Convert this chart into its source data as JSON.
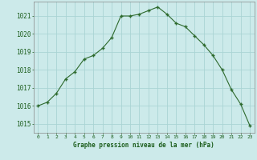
{
  "x": [
    0,
    1,
    2,
    3,
    4,
    5,
    6,
    7,
    8,
    9,
    10,
    11,
    12,
    13,
    14,
    15,
    16,
    17,
    18,
    19,
    20,
    21,
    22,
    23
  ],
  "y": [
    1016.0,
    1016.2,
    1016.7,
    1017.5,
    1017.9,
    1018.6,
    1018.8,
    1019.2,
    1019.8,
    1021.0,
    1021.0,
    1021.1,
    1021.3,
    1021.5,
    1021.1,
    1020.6,
    1020.4,
    1019.9,
    1019.4,
    1018.8,
    1018.0,
    1016.9,
    1016.1,
    1014.9
  ],
  "line_color": "#2d6a2d",
  "marker": "+",
  "marker_color": "#2d6a2d",
  "bg_color": "#cceaea",
  "grid_color": "#aad4d4",
  "xlabel": "Graphe pression niveau de la mer (hPa)",
  "xlabel_color": "#1a5c1a",
  "tick_label_color": "#1a5c1a",
  "ylim": [
    1014.5,
    1021.8
  ],
  "xlim": [
    -0.5,
    23.5
  ],
  "yticks": [
    1015,
    1016,
    1017,
    1018,
    1019,
    1020,
    1021
  ],
  "xtick_labels": [
    "0",
    "1",
    "2",
    "3",
    "4",
    "5",
    "6",
    "7",
    "8",
    "9",
    "10",
    "11",
    "12",
    "13",
    "14",
    "15",
    "16",
    "17",
    "18",
    "19",
    "20",
    "21",
    "22",
    "23"
  ]
}
